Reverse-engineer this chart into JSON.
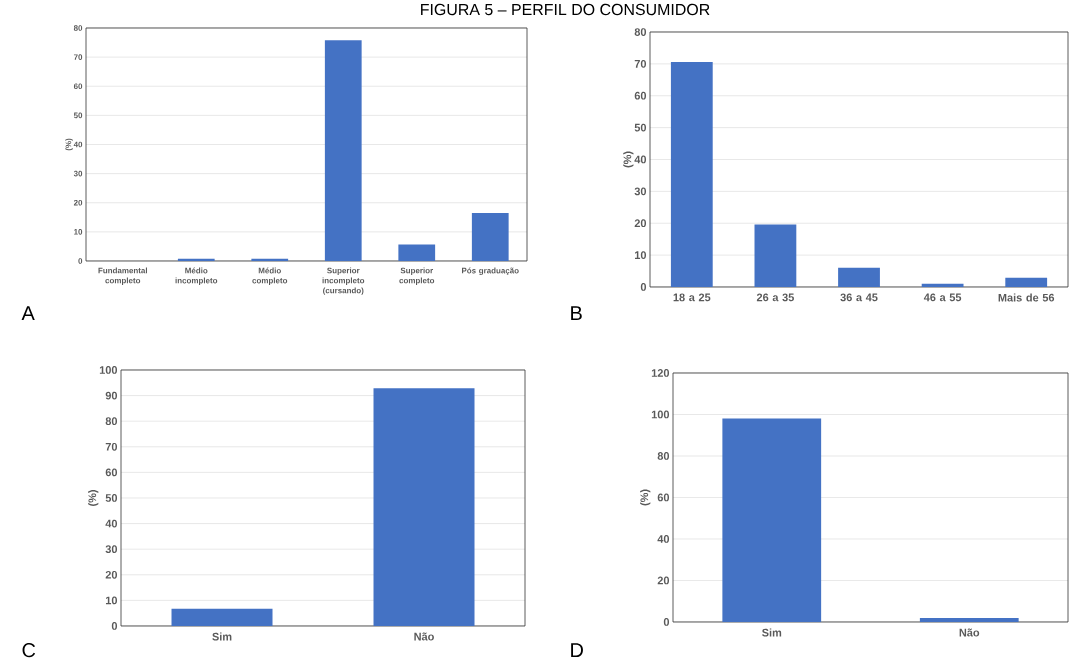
{
  "chart_data": [
    {
      "type": "bar",
      "title": "FIGURA 5 – PERFIL DO CONSUMIDOR",
      "ylabel": "(%)",
      "categories": [
        "Fundamental completo",
        "Médio incompleto",
        "Médio completo",
        "Superior incompleto (cursando)",
        "Superior completo",
        "Pós graduação"
      ],
      "values": [
        0,
        0.8,
        0.8,
        75.8,
        5.7,
        16.5
      ],
      "color": "#4472c4",
      "ylim": [
        0,
        80
      ],
      "yticks": [
        0,
        10,
        20,
        30,
        40,
        50,
        60,
        70,
        80
      ],
      "grid": "y",
      "annotations": [
        "A"
      ]
    },
    {
      "type": "bar",
      "ylabel": "(%)",
      "categories": [
        "18 a 25",
        "26 a 35",
        "36 a 45",
        "46 a 55",
        "Mais de 56"
      ],
      "values": [
        70.6,
        19.6,
        6.0,
        1.0,
        2.9
      ],
      "color": "#4472c4",
      "ylim": [
        0,
        80
      ],
      "yticks": [
        0,
        10,
        20,
        30,
        40,
        50,
        60,
        70,
        80
      ],
      "grid": "y",
      "annotations": [
        "B"
      ]
    },
    {
      "type": "bar",
      "ylabel": "(%)",
      "categories": [
        "Sim",
        "Não"
      ],
      "values": [
        6.7,
        92.9
      ],
      "color": "#4472c4",
      "ylim": [
        0,
        100
      ],
      "yticks": [
        0,
        10,
        20,
        30,
        40,
        50,
        60,
        70,
        80,
        90,
        100
      ],
      "grid": "y",
      "annotations": [
        "C"
      ]
    },
    {
      "type": "bar",
      "ylabel": "(%)",
      "categories": [
        "Sim",
        "Não"
      ],
      "values": [
        98.1,
        1.9
      ],
      "color": "#4472c4",
      "ylim": [
        0,
        120
      ],
      "yticks": [
        0,
        20,
        40,
        60,
        80,
        100,
        120
      ],
      "grid": "y",
      "annotations": [
        "D"
      ]
    }
  ]
}
